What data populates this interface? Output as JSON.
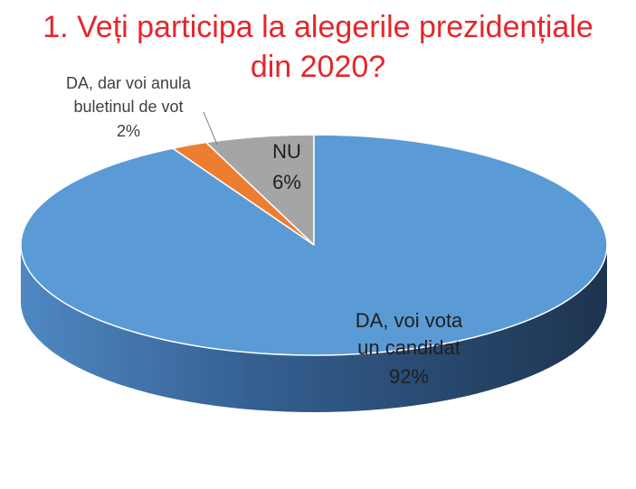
{
  "chart_data": {
    "type": "pie",
    "title_lines": [
      "1. Veți participa la alegerile prezidențiale",
      "din 2020?"
    ],
    "categories": [
      "DA, voi vota un candidat",
      "DA, dar voi anula buletinul de vot",
      "NU"
    ],
    "values": [
      92,
      2,
      6
    ],
    "labels": [
      {
        "lines": [
          "DA, voi vota",
          "un candidat"
        ],
        "percent": "92%"
      },
      {
        "lines": [
          "DA, dar voi anula",
          "buletinul de vot"
        ],
        "percent": "2%"
      },
      {
        "lines": [
          "NU"
        ],
        "percent": "6%"
      }
    ],
    "colors": [
      "#5b9bd5",
      "#ed7d31",
      "#a5a5a5"
    ],
    "style": "3d",
    "legend": "none"
  }
}
